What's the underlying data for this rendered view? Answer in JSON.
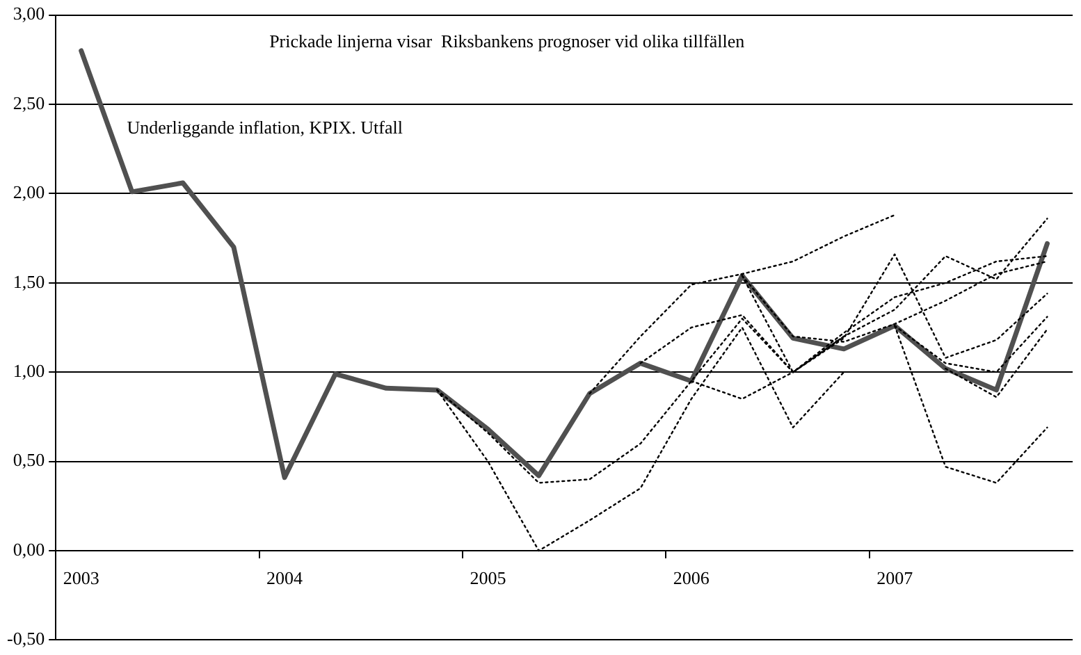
{
  "chart_data": {
    "type": "line",
    "categories": [
      "2003",
      null,
      null,
      null,
      "2004",
      null,
      null,
      null,
      "2005",
      null,
      null,
      null,
      "2006",
      null,
      null,
      null,
      "2007",
      null,
      null,
      null
    ],
    "series": [
      {
        "name": "Underliggande inflation, KPIX. Utfall",
        "color": "#505050",
        "line_style": "solid",
        "values": [
          2.8,
          2.01,
          2.06,
          1.7,
          0.41,
          0.99,
          0.91,
          0.9,
          0.68,
          0.42,
          0.88,
          1.05,
          0.95,
          1.54,
          1.19,
          1.13,
          1.26,
          1.02,
          0.9,
          1.72
        ]
      },
      {
        "color": "#000000",
        "line_style": "dotted",
        "values": [
          null,
          null,
          null,
          null,
          null,
          null,
          null,
          0.9,
          0.66,
          0.38,
          0.4,
          0.6,
          0.95,
          1.3,
          1.0,
          1.2,
          null,
          null,
          null,
          null
        ]
      },
      {
        "color": "#000000",
        "line_style": "dotted",
        "values": [
          null,
          null,
          null,
          null,
          null,
          null,
          null,
          0.9,
          0.5,
          0.0,
          0.17,
          0.35,
          0.85,
          1.25,
          0.69,
          1.0,
          null,
          null,
          null,
          null
        ]
      },
      {
        "color": "#000000",
        "line_style": "dotted",
        "values": [
          null,
          null,
          null,
          null,
          null,
          null,
          null,
          null,
          null,
          null,
          0.88,
          1.2,
          1.49,
          1.55,
          1.62,
          1.76,
          1.88,
          null,
          null,
          null
        ]
      },
      {
        "color": "#000000",
        "line_style": "dotted",
        "values": [
          null,
          null,
          null,
          null,
          null,
          null,
          null,
          null,
          null,
          null,
          null,
          1.05,
          1.25,
          1.32,
          1.0,
          1.22,
          1.42,
          1.5,
          1.62,
          1.65
        ]
      },
      {
        "color": "#000000",
        "line_style": "dotted",
        "values": [
          null,
          null,
          null,
          null,
          null,
          null,
          null,
          null,
          null,
          null,
          null,
          null,
          0.95,
          0.85,
          1.0,
          1.2,
          1.35,
          1.65,
          1.52,
          1.86
        ]
      },
      {
        "color": "#000000",
        "line_style": "dotted",
        "values": [
          null,
          null,
          null,
          null,
          null,
          null,
          null,
          null,
          null,
          null,
          null,
          null,
          null,
          1.54,
          1.2,
          1.17,
          1.27,
          1.4,
          1.55,
          1.62
        ]
      },
      {
        "color": "#000000",
        "line_style": "dotted",
        "values": [
          null,
          null,
          null,
          null,
          null,
          null,
          null,
          null,
          null,
          null,
          null,
          null,
          null,
          1.54,
          1.0,
          1.19,
          1.66,
          1.08,
          1.18,
          1.44
        ]
      },
      {
        "color": "#000000",
        "line_style": "dotted",
        "values": [
          null,
          null,
          null,
          null,
          null,
          null,
          null,
          null,
          null,
          null,
          null,
          null,
          null,
          null,
          null,
          null,
          1.26,
          0.47,
          0.38,
          0.69
        ]
      },
      {
        "color": "#000000",
        "line_style": "dotted",
        "values": [
          null,
          null,
          null,
          null,
          null,
          null,
          null,
          null,
          null,
          null,
          null,
          null,
          null,
          null,
          null,
          null,
          1.26,
          1.05,
          1.0,
          1.31
        ]
      },
      {
        "color": "#000000",
        "line_style": "dotted",
        "values": [
          null,
          null,
          null,
          null,
          null,
          null,
          null,
          null,
          null,
          null,
          null,
          null,
          null,
          null,
          null,
          null,
          null,
          1.02,
          0.86,
          1.24
        ]
      }
    ],
    "ylim": [
      -0.5,
      3
    ],
    "yticks": [
      {
        "value": -0.5,
        "label": "-0,50"
      },
      {
        "value": 0,
        "label": "0,00"
      },
      {
        "value": 0.5,
        "label": "0,50"
      },
      {
        "value": 1,
        "label": "1,00"
      },
      {
        "value": 1.5,
        "label": "1,50"
      },
      {
        "value": 2,
        "label": "2,00"
      },
      {
        "value": 2.5,
        "label": "2,50"
      },
      {
        "value": 3,
        "label": "3,00"
      }
    ],
    "grid": "y",
    "legend": false,
    "marker": "none",
    "annotations": [
      "Prickade linjerna visar  Riksbankens prognoser vid olika tillfällen"
    ]
  }
}
